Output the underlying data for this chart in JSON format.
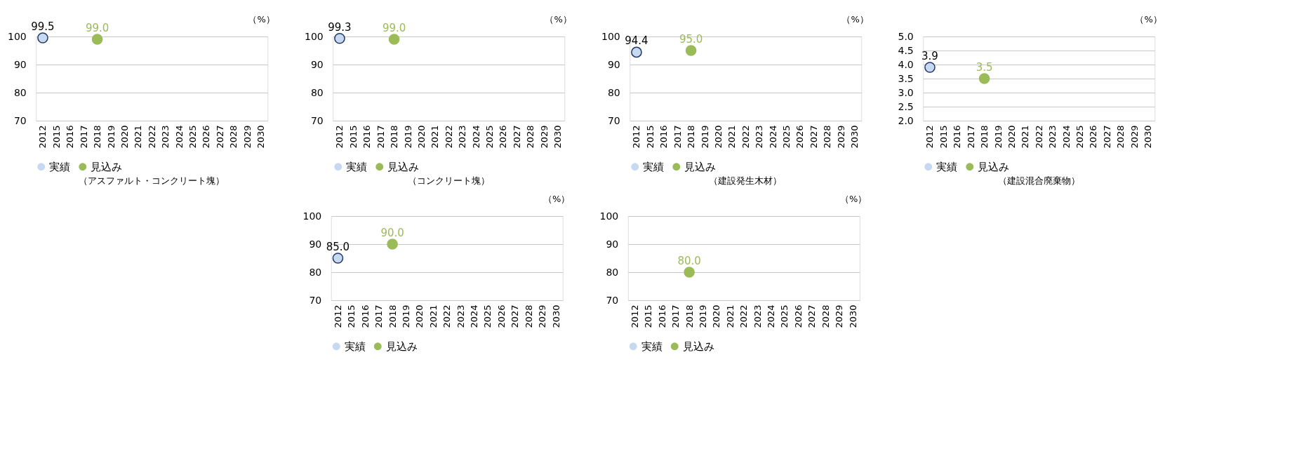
{
  "chart_data": [
    {
      "type": "scatter",
      "title": "（アスファルト・コンクリート塊）",
      "ylabel": "（%）",
      "categories": [
        "2012",
        "2015",
        "2016",
        "2017",
        "2018",
        "2019",
        "2020",
        "2021",
        "2022",
        "2023",
        "2024",
        "2025",
        "2026",
        "2027",
        "2028",
        "2029",
        "2030"
      ],
      "series": [
        {
          "name": "実績",
          "color": "#c6d9f1",
          "values": [
            99.5,
            null,
            null,
            null,
            null,
            null,
            null,
            null,
            null,
            null,
            null,
            null,
            null,
            null,
            null,
            null,
            null
          ],
          "value_labels": [
            "99.5",
            null,
            null,
            null,
            null,
            null,
            null,
            null,
            null,
            null,
            null,
            null,
            null,
            null,
            null,
            null,
            null
          ]
        },
        {
          "name": "見込み",
          "color": "#9bbb59",
          "values": [
            null,
            null,
            null,
            null,
            99.0,
            null,
            null,
            null,
            null,
            null,
            null,
            null,
            null,
            null,
            null,
            null,
            null
          ],
          "value_labels": [
            null,
            null,
            null,
            null,
            "99.0",
            null,
            null,
            null,
            null,
            null,
            null,
            null,
            null,
            null,
            null,
            null,
            null
          ]
        }
      ],
      "ylim": [
        70,
        100
      ],
      "yticks": [
        70,
        80,
        90,
        100
      ],
      "grid": "y",
      "legend": "bottom",
      "marker": "circle"
    },
    {
      "type": "scatter",
      "title": "（コンクリート塊）",
      "ylabel": "（%）",
      "categories": [
        "2012",
        "2015",
        "2016",
        "2017",
        "2018",
        "2019",
        "2020",
        "2021",
        "2022",
        "2023",
        "2024",
        "2025",
        "2026",
        "2027",
        "2028",
        "2029",
        "2030"
      ],
      "series": [
        {
          "name": "実績",
          "color": "#c6d9f1",
          "values": [
            99.3,
            null,
            null,
            null,
            null,
            null,
            null,
            null,
            null,
            null,
            null,
            null,
            null,
            null,
            null,
            null,
            null
          ],
          "value_labels": [
            "99.3",
            null,
            null,
            null,
            null,
            null,
            null,
            null,
            null,
            null,
            null,
            null,
            null,
            null,
            null,
            null,
            null
          ]
        },
        {
          "name": "見込み",
          "color": "#9bbb59",
          "values": [
            null,
            null,
            null,
            null,
            99.0,
            null,
            null,
            null,
            null,
            null,
            null,
            null,
            null,
            null,
            null,
            null,
            null
          ],
          "value_labels": [
            null,
            null,
            null,
            null,
            "99.0",
            null,
            null,
            null,
            null,
            null,
            null,
            null,
            null,
            null,
            null,
            null,
            null
          ]
        }
      ],
      "ylim": [
        70,
        100
      ],
      "yticks": [
        70,
        80,
        90,
        100
      ],
      "grid": "y",
      "legend": "bottom",
      "marker": "circle"
    },
    {
      "type": "scatter",
      "title": "（建設発生木材）",
      "ylabel": "（%）",
      "categories": [
        "2012",
        "2015",
        "2016",
        "2017",
        "2018",
        "2019",
        "2020",
        "2021",
        "2022",
        "2023",
        "2024",
        "2025",
        "2026",
        "2027",
        "2028",
        "2029",
        "2030"
      ],
      "series": [
        {
          "name": "実績",
          "color": "#c6d9f1",
          "values": [
            94.4,
            null,
            null,
            null,
            null,
            null,
            null,
            null,
            null,
            null,
            null,
            null,
            null,
            null,
            null,
            null,
            null
          ],
          "value_labels": [
            "94.4",
            null,
            null,
            null,
            null,
            null,
            null,
            null,
            null,
            null,
            null,
            null,
            null,
            null,
            null,
            null,
            null
          ]
        },
        {
          "name": "見込み",
          "color": "#9bbb59",
          "values": [
            null,
            null,
            null,
            null,
            95.0,
            null,
            null,
            null,
            null,
            null,
            null,
            null,
            null,
            null,
            null,
            null,
            null
          ],
          "value_labels": [
            null,
            null,
            null,
            null,
            "95.0",
            null,
            null,
            null,
            null,
            null,
            null,
            null,
            null,
            null,
            null,
            null,
            null
          ]
        }
      ],
      "ylim": [
        70,
        100
      ],
      "yticks": [
        70,
        80,
        90,
        100
      ],
      "grid": "y",
      "legend": "bottom",
      "marker": "circle"
    },
    {
      "type": "scatter",
      "title": "（建設混合廃棄物）",
      "ylabel": "（%）",
      "categories": [
        "2012",
        "2015",
        "2016",
        "2017",
        "2018",
        "2019",
        "2020",
        "2021",
        "2022",
        "2023",
        "2024",
        "2025",
        "2026",
        "2027",
        "2028",
        "2029",
        "2030"
      ],
      "series": [
        {
          "name": "実績",
          "color": "#c6d9f1",
          "values": [
            3.9,
            null,
            null,
            null,
            null,
            null,
            null,
            null,
            null,
            null,
            null,
            null,
            null,
            null,
            null,
            null,
            null
          ],
          "value_labels": [
            "3.9",
            null,
            null,
            null,
            null,
            null,
            null,
            null,
            null,
            null,
            null,
            null,
            null,
            null,
            null,
            null,
            null
          ]
        },
        {
          "name": "見込み",
          "color": "#9bbb59",
          "values": [
            null,
            null,
            null,
            null,
            3.5,
            null,
            null,
            null,
            null,
            null,
            null,
            null,
            null,
            null,
            null,
            null,
            null
          ],
          "value_labels": [
            null,
            null,
            null,
            null,
            "3.5",
            null,
            null,
            null,
            null,
            null,
            null,
            null,
            null,
            null,
            null,
            null,
            null
          ]
        }
      ],
      "ylim": [
        2.0,
        5.0
      ],
      "yticks": [
        {
          "value": 2.0,
          "label": "2.0"
        },
        {
          "value": 2.5,
          "label": "2.5"
        },
        {
          "value": 3.0,
          "label": "3.0"
        },
        {
          "value": 3.5,
          "label": "3.5"
        },
        {
          "value": 4.0,
          "label": "4.0"
        },
        {
          "value": 4.5,
          "label": "4.5"
        },
        {
          "value": 5.0,
          "label": "5.0"
        }
      ],
      "grid": "y",
      "legend": "bottom",
      "marker": "circle"
    },
    {
      "type": "scatter",
      "ylabel": "（%）",
      "categories": [
        "2012",
        "2015",
        "2016",
        "2017",
        "2018",
        "2019",
        "2020",
        "2021",
        "2022",
        "2023",
        "2024",
        "2025",
        "2026",
        "2027",
        "2028",
        "2029",
        "2030"
      ],
      "series": [
        {
          "name": "実績",
          "color": "#c6d9f1",
          "values": [
            85.0,
            null,
            null,
            null,
            null,
            null,
            null,
            null,
            null,
            null,
            null,
            null,
            null,
            null,
            null,
            null,
            null
          ],
          "value_labels": [
            "85.0",
            null,
            null,
            null,
            null,
            null,
            null,
            null,
            null,
            null,
            null,
            null,
            null,
            null,
            null,
            null,
            null
          ]
        },
        {
          "name": "見込み",
          "color": "#9bbb59",
          "values": [
            null,
            null,
            null,
            null,
            90.0,
            null,
            null,
            null,
            null,
            null,
            null,
            null,
            null,
            null,
            null,
            null,
            null
          ],
          "value_labels": [
            null,
            null,
            null,
            null,
            "90.0",
            null,
            null,
            null,
            null,
            null,
            null,
            null,
            null,
            null,
            null,
            null,
            null
          ]
        }
      ],
      "ylim": [
        70,
        100
      ],
      "yticks": [
        70,
        80,
        90,
        100
      ],
      "grid": "y",
      "legend": "bottom",
      "marker": "circle"
    },
    {
      "type": "scatter",
      "ylabel": "（%）",
      "categories": [
        "2012",
        "2015",
        "2016",
        "2017",
        "2018",
        "2019",
        "2020",
        "2021",
        "2022",
        "2023",
        "2024",
        "2025",
        "2026",
        "2027",
        "2028",
        "2029",
        "2030"
      ],
      "series": [
        {
          "name": "実績",
          "color": "#c6d9f1",
          "values": [
            null,
            null,
            null,
            null,
            null,
            null,
            null,
            null,
            null,
            null,
            null,
            null,
            null,
            null,
            null,
            null,
            null
          ]
        },
        {
          "name": "見込み",
          "color": "#9bbb59",
          "values": [
            null,
            null,
            null,
            null,
            80.0,
            null,
            null,
            null,
            null,
            null,
            null,
            null,
            null,
            null,
            null,
            null,
            null
          ],
          "value_labels": [
            null,
            null,
            null,
            null,
            "80.0",
            null,
            null,
            null,
            null,
            null,
            null,
            null,
            null,
            null,
            null,
            null,
            null
          ]
        }
      ],
      "ylim": [
        70,
        100
      ],
      "yticks": [
        70,
        80,
        90,
        100
      ],
      "grid": "y",
      "legend": "bottom",
      "marker": "circle"
    }
  ]
}
